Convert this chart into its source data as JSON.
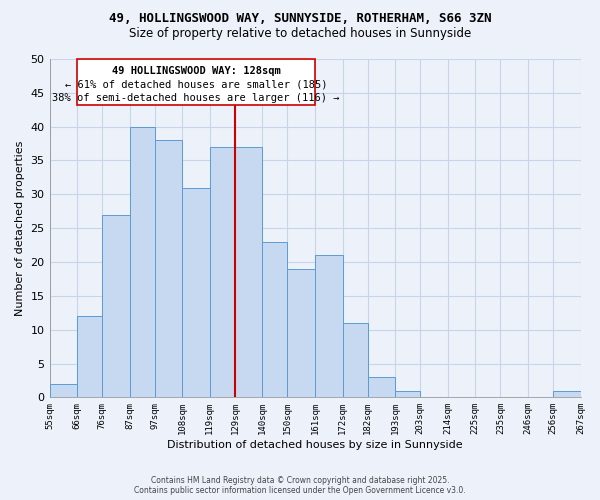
{
  "title1": "49, HOLLINGSWOOD WAY, SUNNYSIDE, ROTHERHAM, S66 3ZN",
  "title2": "Size of property relative to detached houses in Sunnyside",
  "xlabel": "Distribution of detached houses by size in Sunnyside",
  "ylabel": "Number of detached properties",
  "bar_edges": [
    55,
    66,
    76,
    87,
    97,
    108,
    119,
    129,
    140,
    150,
    161,
    172,
    182,
    193,
    203,
    214,
    225,
    235,
    246,
    256,
    267
  ],
  "bar_heights": [
    2,
    12,
    27,
    40,
    38,
    31,
    37,
    37,
    23,
    19,
    21,
    11,
    3,
    1,
    0,
    0,
    0,
    0,
    0,
    1
  ],
  "bar_color": "#c6d9f1",
  "bar_edge_color": "#5b9bd5",
  "grid_color": "#c8d4e8",
  "vline_x": 129,
  "vline_color": "#cc0000",
  "annotation_title": "49 HOLLINGSWOOD WAY: 128sqm",
  "annotation_line1": "← 61% of detached houses are smaller (185)",
  "annotation_line2": "38% of semi-detached houses are larger (116) →",
  "annotation_box_color": "#ffffff",
  "annotation_box_edge": "#cc0000",
  "ylim": [
    0,
    50
  ],
  "yticks": [
    0,
    5,
    10,
    15,
    20,
    25,
    30,
    35,
    40,
    45,
    50
  ],
  "xtick_labels": [
    "55sqm",
    "66sqm",
    "76sqm",
    "87sqm",
    "97sqm",
    "108sqm",
    "119sqm",
    "129sqm",
    "140sqm",
    "150sqm",
    "161sqm",
    "172sqm",
    "182sqm",
    "193sqm",
    "203sqm",
    "214sqm",
    "225sqm",
    "235sqm",
    "246sqm",
    "256sqm",
    "267sqm"
  ],
  "footer1": "Contains HM Land Registry data © Crown copyright and database right 2025.",
  "footer2": "Contains public sector information licensed under the Open Government Licence v3.0.",
  "bg_color": "#edf2fa"
}
